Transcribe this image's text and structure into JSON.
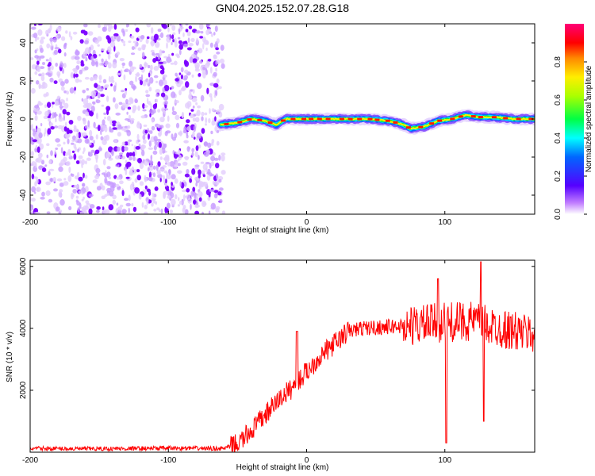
{
  "title": "GN04.2025.152.07.28.G18",
  "colors": {
    "snr_line": "#ff0000",
    "axes": "#000000",
    "noise_purple": "#7a00ff"
  },
  "chart_data": [
    {
      "type": "heatmap",
      "xlabel": "Height of straight line (km)",
      "ylabel": "Frequency (Hz)",
      "xlim": [
        -200,
        165
      ],
      "ylim": [
        -50,
        50
      ],
      "xticks": [
        "-200",
        "-100",
        "0",
        "100"
      ],
      "yticks": [
        "-40",
        "-20",
        "0",
        "20",
        "40"
      ],
      "noise_region_x": [
        -200,
        -60
      ],
      "ridge": {
        "x": [
          -62,
          -50,
          -40,
          -30,
          -22,
          -15,
          -5,
          0,
          10,
          30,
          45,
          60,
          70,
          75,
          85,
          95,
          105,
          115,
          125,
          135,
          150,
          165
        ],
        "freq": [
          -3,
          -2,
          0,
          -1,
          -3,
          0,
          0,
          0,
          0,
          0,
          0,
          -1,
          -3,
          -5,
          -4,
          -1,
          0,
          2,
          1,
          1,
          0,
          0
        ]
      },
      "colorbar": {
        "label": "Normalized spectral amplitude",
        "ticks": [
          "0.0",
          "0.2",
          "0.4",
          "0.6",
          "0.8"
        ],
        "range": [
          0,
          1
        ]
      }
    },
    {
      "type": "line",
      "xlabel": "Height of straight line (km)",
      "ylabel": "SNR (10 * v/v)",
      "xlim": [
        -200,
        165
      ],
      "ylim": [
        0,
        6200
      ],
      "xticks": [
        "-200",
        "-100",
        "0",
        "100"
      ],
      "yticks": [
        "2000",
        "4000",
        "6000"
      ],
      "series": [
        {
          "x": [
            -200,
            -150,
            -100,
            -60,
            -50,
            -40,
            -30,
            -20,
            -10,
            0,
            10,
            20,
            30,
            40,
            60,
            80,
            90,
            100,
            110,
            120,
            130,
            140,
            150,
            165
          ],
          "values": [
            120,
            110,
            130,
            120,
            250,
            700,
            1200,
            1700,
            2100,
            2600,
            3100,
            3500,
            3900,
            4000,
            4050,
            4100,
            4150,
            4200,
            4200,
            4250,
            4100,
            4000,
            3900,
            3800
          ]
        }
      ]
    }
  ]
}
